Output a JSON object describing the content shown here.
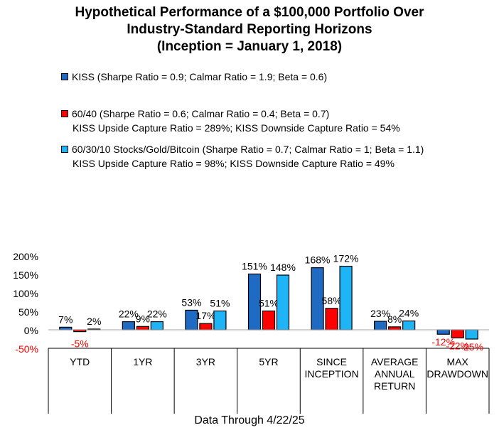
{
  "title_lines": [
    "Hypothetical Performance of a $100,000 Portfolio Over",
    "Industry-Standard Reporting Horizons",
    "(Inception = January 1, 2018)"
  ],
  "legend": [
    {
      "label": "KISS (Sharpe Ratio = 0.9; Calmar Ratio = 1.9; Beta = 0.6)",
      "sub": "",
      "color": "#1f6bc4"
    },
    {
      "label": "60/40 (Sharpe Ratio = 0.6; Calmar Ratio = 0.4; Beta = 0.7)",
      "sub": "KISS Upside Capture Ratio = 289%; KISS Downside Capture Ratio = 54%",
      "color": "#ff0000"
    },
    {
      "label": "60/30/10 Stocks/Gold/Bitcoin (Sharpe Ratio = 0.7; Calmar Ratio = 1; Beta = 1.1)",
      "sub": "KISS Upside Capture Ratio = 98%; KISS Downside Capture Ratio = 49%",
      "color": "#1fb4f5"
    }
  ],
  "footer": "Data Through 4/22/25",
  "chart_data": {
    "type": "bar",
    "categories": [
      [
        "YTD"
      ],
      [
        "1YR"
      ],
      [
        "3YR"
      ],
      [
        "5YR"
      ],
      [
        "SINCE",
        "INCEPTION"
      ],
      [
        "AVERAGE",
        "ANNUAL",
        "RETURN"
      ],
      [
        "MAX",
        "DRAWDOWN"
      ]
    ],
    "series": [
      {
        "name": "KISS",
        "values": [
          7,
          22,
          53,
          151,
          168,
          23,
          -12
        ],
        "labels": [
          "7%",
          "22%",
          "53%",
          "151%",
          "168%",
          "23%",
          "-12%"
        ],
        "color": "#1f6bc4"
      },
      {
        "name": "60/40",
        "values": [
          -5,
          9,
          17,
          51,
          58,
          8,
          -22
        ],
        "labels": [
          "-5%",
          "9%",
          "17%",
          "51%",
          "58%",
          "8%",
          "-22%"
        ],
        "color": "#ff0000"
      },
      {
        "name": "60/30/10 Stocks/Gold/Bitcoin",
        "values": [
          2,
          22,
          51,
          148,
          172,
          24,
          -25
        ],
        "labels": [
          "2%",
          "22%",
          "51%",
          "148%",
          "172%",
          "24%",
          "-25%"
        ],
        "color": "#1fb4f5"
      }
    ],
    "y_ticks": [
      "-50%",
      "0%",
      "50%",
      "100%",
      "150%",
      "200%"
    ],
    "y_tick_values": [
      -50,
      0,
      50,
      100,
      150,
      200
    ],
    "ylim": [
      -50,
      200
    ],
    "negative_label_color": "#ff0000",
    "negative_tick_color": "#ff0000"
  }
}
